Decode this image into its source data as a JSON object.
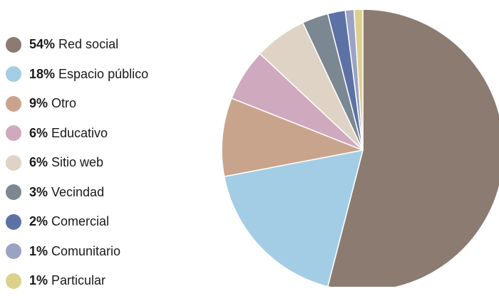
{
  "chart_data": {
    "type": "pie",
    "title": "",
    "legend_position": "left",
    "slices": [
      {
        "label": "Red social",
        "percent_label": "54%",
        "value": 54,
        "color": "#8c7b70"
      },
      {
        "label": "Espacio público",
        "percent_label": "18%",
        "value": 18,
        "color": "#a3cde4"
      },
      {
        "label": "Otro",
        "percent_label": "9%",
        "value": 9,
        "color": "#c9a48c"
      },
      {
        "label": "Educativo",
        "percent_label": "6%",
        "value": 6,
        "color": "#cfa9bd"
      },
      {
        "label": "Sitio web",
        "percent_label": "6%",
        "value": 6,
        "color": "#ded3c5"
      },
      {
        "label": "Vecindad",
        "percent_label": "3%",
        "value": 3,
        "color": "#7b8891"
      },
      {
        "label": "Comercial",
        "percent_label": "2%",
        "value": 2,
        "color": "#5d72a4"
      },
      {
        "label": "Comunitario",
        "percent_label": "1%",
        "value": 1,
        "color": "#9aa3c4"
      },
      {
        "label": "Particular",
        "percent_label": "1%",
        "value": 1,
        "color": "#ddd08c"
      }
    ]
  }
}
